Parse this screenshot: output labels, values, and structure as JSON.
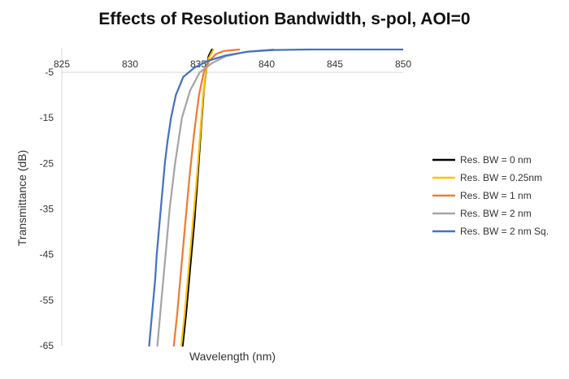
{
  "chart_data": {
    "type": "line",
    "title": "Effects of Resolution Bandwidth, s-pol, AOI=0",
    "xlabel": "Wavelength (nm)",
    "ylabel": "Transmittance (dB)",
    "xlim": [
      825,
      850
    ],
    "ylim": [
      -65,
      0
    ],
    "xticks": [
      825,
      830,
      835,
      840,
      845,
      850
    ],
    "yticks": [
      -5,
      -15,
      -25,
      -35,
      -45,
      -55,
      -65
    ],
    "x_axis_at": -5,
    "grid": false,
    "legend_position": "right",
    "series": [
      {
        "name": "Res. BW = 0 nm",
        "color": "#000000",
        "points": [
          [
            833.85,
            -65
          ],
          [
            834.1,
            -58
          ],
          [
            834.4,
            -48
          ],
          [
            834.7,
            -38
          ],
          [
            834.95,
            -28
          ],
          [
            835.2,
            -17
          ],
          [
            835.4,
            -9
          ],
          [
            835.6,
            -4
          ],
          [
            835.75,
            -1.5
          ],
          [
            836.0,
            0
          ]
        ]
      },
      {
        "name": "Res. BW = 0.25nm",
        "color": "#FFC000",
        "points": [
          [
            833.75,
            -65
          ],
          [
            834.0,
            -58
          ],
          [
            834.3,
            -48
          ],
          [
            834.6,
            -38
          ],
          [
            834.9,
            -28
          ],
          [
            835.15,
            -18
          ],
          [
            835.35,
            -10
          ],
          [
            835.55,
            -5
          ],
          [
            835.75,
            -2
          ],
          [
            836.1,
            0
          ]
        ]
      },
      {
        "name": "Res. BW = 1 nm",
        "color": "#ED7D31",
        "points": [
          [
            833.2,
            -65
          ],
          [
            833.45,
            -58
          ],
          [
            833.75,
            -48
          ],
          [
            834.05,
            -38
          ],
          [
            834.35,
            -28
          ],
          [
            834.7,
            -18
          ],
          [
            835.05,
            -10
          ],
          [
            835.4,
            -5
          ],
          [
            835.8,
            -2.5
          ],
          [
            836.3,
            -1
          ],
          [
            836.9,
            -0.3
          ],
          [
            838.0,
            0
          ]
        ]
      },
      {
        "name": "Res. BW = 2 nm",
        "color": "#A5A5A5",
        "points": [
          [
            832.0,
            -65
          ],
          [
            832.3,
            -55
          ],
          [
            832.6,
            -45
          ],
          [
            832.9,
            -35
          ],
          [
            833.3,
            -25
          ],
          [
            833.8,
            -15
          ],
          [
            834.4,
            -9
          ],
          [
            835.1,
            -5
          ],
          [
            836.0,
            -3
          ],
          [
            837.0,
            -1.5
          ],
          [
            838.5,
            -0.5
          ],
          [
            840.5,
            0
          ]
        ]
      },
      {
        "name": "Res. BW = 2 nm Sq.",
        "color": "#4472C4",
        "points": [
          [
            831.4,
            -65
          ],
          [
            831.55,
            -60
          ],
          [
            831.7,
            -55
          ],
          [
            831.85,
            -50
          ],
          [
            831.95,
            -45
          ],
          [
            832.1,
            -40
          ],
          [
            832.25,
            -35
          ],
          [
            832.4,
            -30
          ],
          [
            832.55,
            -25
          ],
          [
            832.75,
            -20
          ],
          [
            833.0,
            -15
          ],
          [
            833.35,
            -10
          ],
          [
            833.9,
            -6
          ],
          [
            834.7,
            -4
          ],
          [
            835.7,
            -2.5
          ],
          [
            837.0,
            -1.3
          ],
          [
            838.6,
            -0.5
          ],
          [
            840.5,
            -0.1
          ],
          [
            843.0,
            0
          ],
          [
            850.0,
            0
          ]
        ]
      }
    ]
  }
}
